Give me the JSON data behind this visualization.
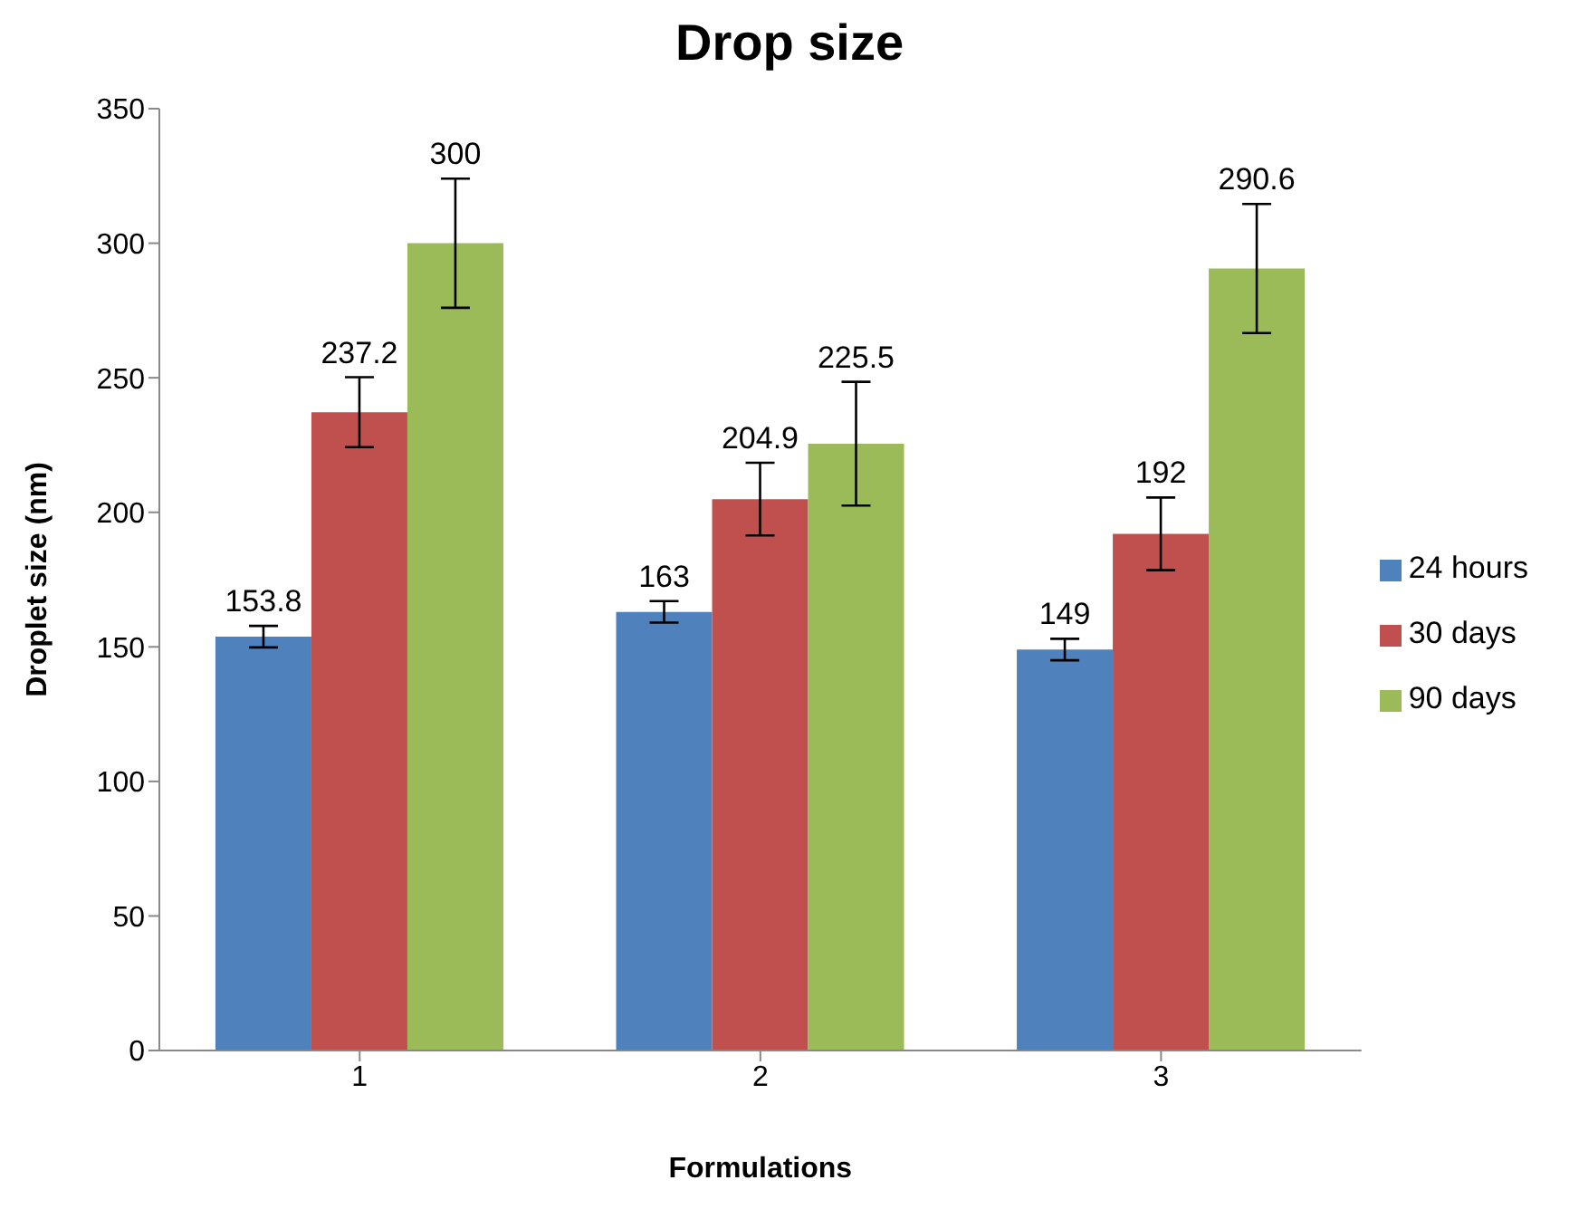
{
  "chart_data": {
    "type": "bar",
    "title": "Drop size",
    "xlabel": "Formulations",
    "ylabel": "Droplet size (nm)",
    "categories": [
      "1",
      "2",
      "3"
    ],
    "series": [
      {
        "name": "24 hours",
        "color": "#4f81bd",
        "values": [
          153.8,
          163,
          149
        ],
        "errors": [
          4,
          4,
          4
        ]
      },
      {
        "name": "30 days",
        "color": "#c0504d",
        "values": [
          237.2,
          204.9,
          192
        ],
        "errors": [
          13,
          13.5,
          13.5
        ]
      },
      {
        "name": "90 days",
        "color": "#9bbb59",
        "values": [
          300,
          225.5,
          290.6
        ],
        "errors": [
          24,
          23,
          24
        ]
      }
    ],
    "ylim": [
      0,
      350
    ],
    "yticks": [
      0,
      50,
      100,
      150,
      200,
      250,
      300,
      350
    ],
    "grid": false,
    "legend": "right",
    "data_labels": true
  }
}
